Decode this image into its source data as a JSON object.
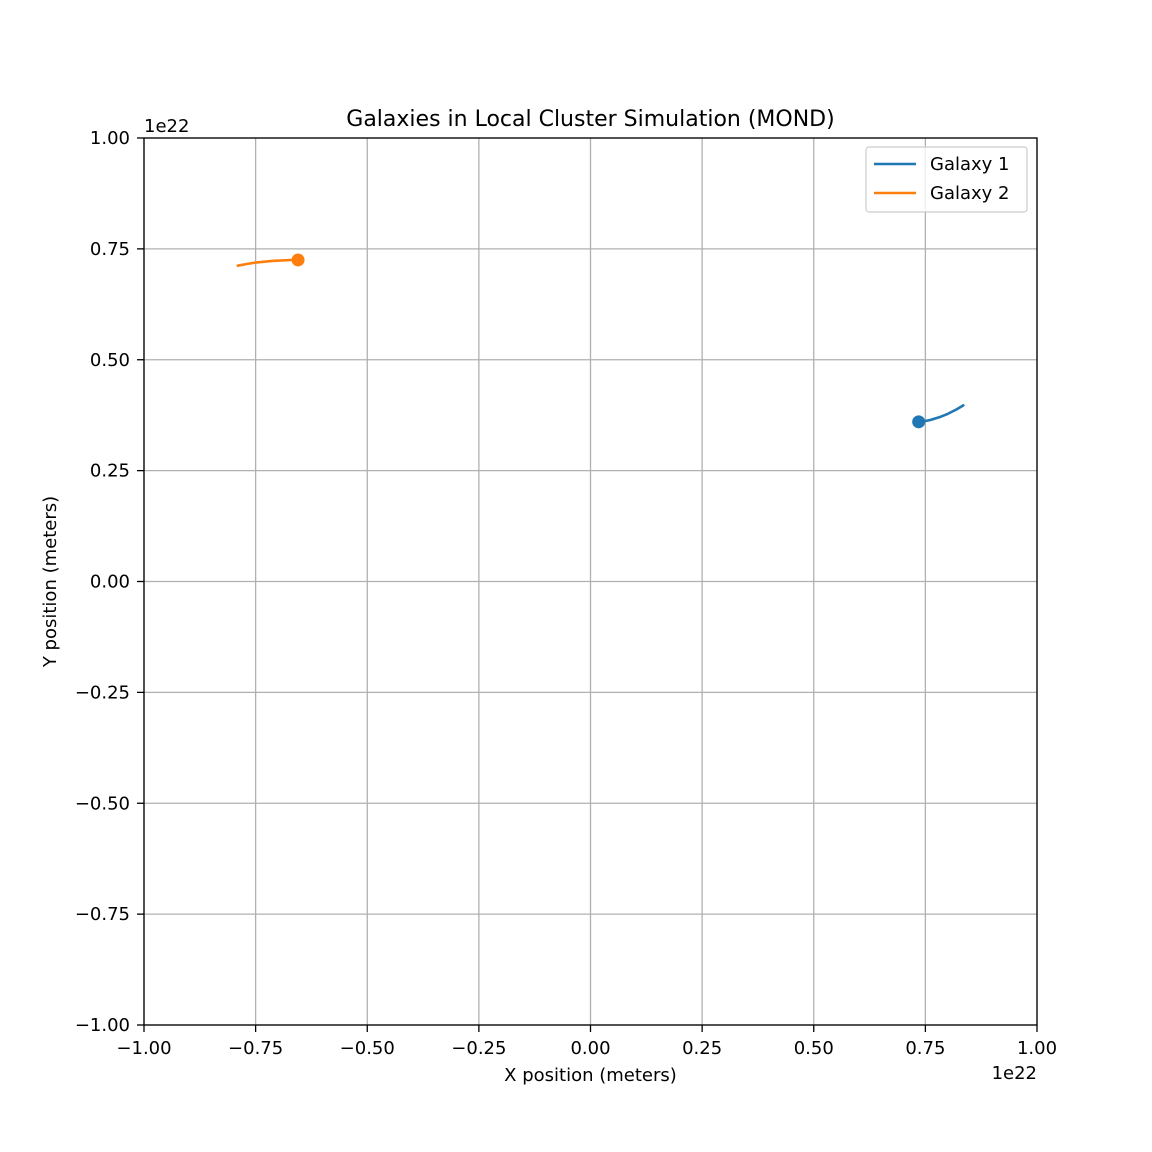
{
  "chart_data": {
    "type": "line",
    "title": "Galaxies in Local Cluster Simulation (MOND)",
    "xlabel": "X position (meters)",
    "ylabel": "Y position (meters)",
    "x_offset_text": "1e22",
    "y_offset_text": "1e22",
    "xlim": [
      -1.0,
      1.0
    ],
    "ylim": [
      -1.0,
      1.0
    ],
    "x_ticks": [
      -1.0,
      -0.75,
      -0.5,
      -0.25,
      0.0,
      0.25,
      0.5,
      0.75,
      1.0
    ],
    "x_tick_labels": [
      "−1.00",
      "−0.75",
      "−0.50",
      "−0.25",
      "0.00",
      "0.25",
      "0.50",
      "0.75",
      "1.00"
    ],
    "y_ticks": [
      -1.0,
      -0.75,
      -0.5,
      -0.25,
      0.0,
      0.25,
      0.5,
      0.75,
      1.0
    ],
    "y_tick_labels": [
      "−1.00",
      "−0.75",
      "−0.50",
      "−0.25",
      "0.00",
      "0.25",
      "0.50",
      "0.75",
      "1.00"
    ],
    "grid": true,
    "legend_position": "top-right",
    "series": [
      {
        "name": "Galaxy 1",
        "color": "#1f77b4",
        "x": [
          0.835,
          0.82,
          0.8,
          0.78,
          0.76,
          0.745,
          0.735
        ],
        "y": [
          0.397,
          0.388,
          0.378,
          0.37,
          0.364,
          0.361,
          0.36
        ],
        "current": [
          0.735,
          0.36
        ]
      },
      {
        "name": "Galaxy 2",
        "color": "#ff7f0e",
        "x": [
          -0.79,
          -0.77,
          -0.75,
          -0.73,
          -0.71,
          -0.69,
          -0.67,
          -0.655
        ],
        "y": [
          0.712,
          0.716,
          0.719,
          0.721,
          0.723,
          0.724,
          0.725,
          0.725
        ],
        "current": [
          -0.655,
          0.725
        ]
      }
    ]
  }
}
